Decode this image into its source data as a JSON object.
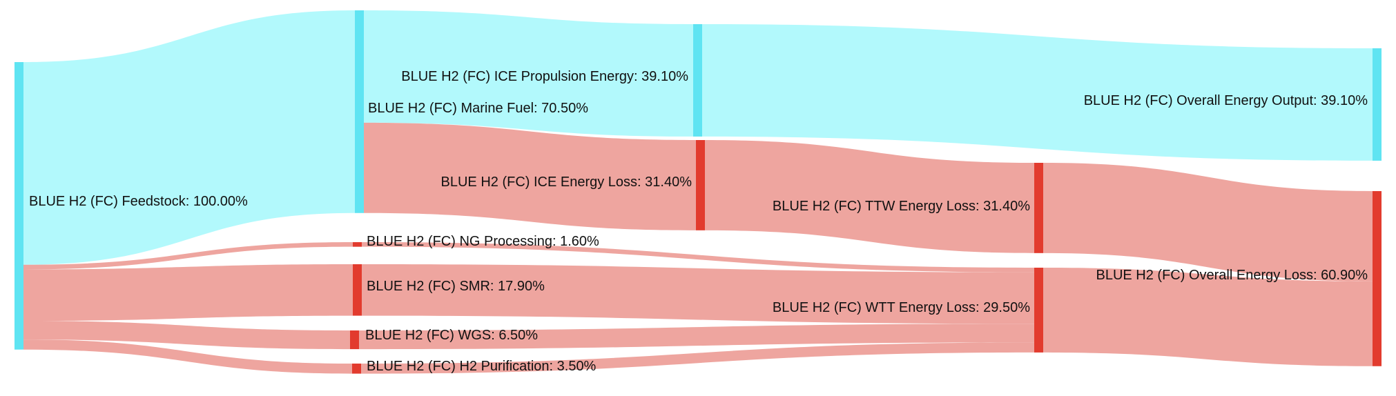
{
  "colors": {
    "energy": "#5fe4f2",
    "energy_link": "#b2f9fc",
    "loss": "#e23b2e",
    "loss_link": "#eea59f"
  },
  "nodes": [
    {
      "id": "feedstock",
      "label": "BLUE H2 (FC) Feedstock: 100.00%",
      "value": 100.0,
      "type": "energy"
    },
    {
      "id": "marine_fuel",
      "label": "BLUE H2 (FC) Marine Fuel: 70.50%",
      "value": 70.5,
      "type": "energy"
    },
    {
      "id": "ng_processing",
      "label": "BLUE H2 (FC) NG Processing: 1.60%",
      "value": 1.6,
      "type": "loss"
    },
    {
      "id": "smr",
      "label": "BLUE H2 (FC) SMR: 17.90%",
      "value": 17.9,
      "type": "loss"
    },
    {
      "id": "wgs",
      "label": "BLUE H2 (FC) WGS: 6.50%",
      "value": 6.5,
      "type": "loss"
    },
    {
      "id": "h2_purification",
      "label": "BLUE H2 (FC) H2 Purification: 3.50%",
      "value": 3.5,
      "type": "loss"
    },
    {
      "id": "ice_propulsion",
      "label": "BLUE H2 (FC) ICE Propulsion Energy: 39.10%",
      "value": 39.1,
      "type": "energy"
    },
    {
      "id": "ice_loss",
      "label": "BLUE H2 (FC) ICE Energy Loss: 31.40%",
      "value": 31.4,
      "type": "loss"
    },
    {
      "id": "ttw_loss",
      "label": "BLUE H2 (FC) TTW Energy Loss: 31.40%",
      "value": 31.4,
      "type": "loss"
    },
    {
      "id": "wtt_loss",
      "label": "BLUE H2 (FC) WTT Energy Loss: 29.50%",
      "value": 29.5,
      "type": "loss"
    },
    {
      "id": "overall_output",
      "label": "BLUE H2 (FC) Overall Energy Output: 39.10%",
      "value": 39.1,
      "type": "energy"
    },
    {
      "id": "overall_loss",
      "label": "BLUE H2 (FC) Overall Energy Loss: 60.90%",
      "value": 60.9,
      "type": "loss"
    }
  ],
  "links": [
    {
      "source": "feedstock",
      "target": "marine_fuel",
      "value": 70.5,
      "type": "energy"
    },
    {
      "source": "feedstock",
      "target": "ng_processing",
      "value": 1.6,
      "type": "loss"
    },
    {
      "source": "feedstock",
      "target": "smr",
      "value": 17.9,
      "type": "loss"
    },
    {
      "source": "feedstock",
      "target": "wgs",
      "value": 6.5,
      "type": "loss"
    },
    {
      "source": "feedstock",
      "target": "h2_purification",
      "value": 3.5,
      "type": "loss"
    },
    {
      "source": "marine_fuel",
      "target": "ice_propulsion",
      "value": 39.1,
      "type": "energy"
    },
    {
      "source": "marine_fuel",
      "target": "ice_loss",
      "value": 31.4,
      "type": "loss"
    },
    {
      "source": "ice_propulsion",
      "target": "overall_output",
      "value": 39.1,
      "type": "energy"
    },
    {
      "source": "ice_loss",
      "target": "ttw_loss",
      "value": 31.4,
      "type": "loss"
    },
    {
      "source": "ng_processing",
      "target": "wtt_loss",
      "value": 1.6,
      "type": "loss"
    },
    {
      "source": "smr",
      "target": "wtt_loss",
      "value": 17.9,
      "type": "loss"
    },
    {
      "source": "wgs",
      "target": "wtt_loss",
      "value": 6.5,
      "type": "loss"
    },
    {
      "source": "h2_purification",
      "target": "wtt_loss",
      "value": 3.5,
      "type": "loss"
    },
    {
      "source": "ttw_loss",
      "target": "overall_loss",
      "value": 31.4,
      "type": "loss"
    },
    {
      "source": "wtt_loss",
      "target": "overall_loss",
      "value": 29.5,
      "type": "loss"
    }
  ]
}
